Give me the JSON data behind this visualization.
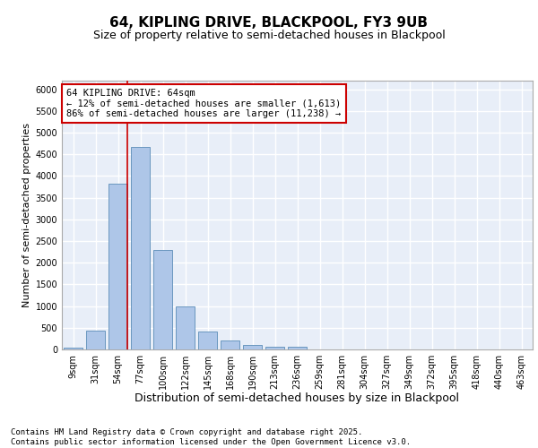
{
  "title1": "64, KIPLING DRIVE, BLACKPOOL, FY3 9UB",
  "title2": "Size of property relative to semi-detached houses in Blackpool",
  "xlabel": "Distribution of semi-detached houses by size in Blackpool",
  "ylabel": "Number of semi-detached properties",
  "categories": [
    "9sqm",
    "31sqm",
    "54sqm",
    "77sqm",
    "100sqm",
    "122sqm",
    "145sqm",
    "168sqm",
    "190sqm",
    "213sqm",
    "236sqm",
    "259sqm",
    "281sqm",
    "304sqm",
    "327sqm",
    "349sqm",
    "372sqm",
    "395sqm",
    "418sqm",
    "440sqm",
    "463sqm"
  ],
  "values": [
    50,
    430,
    3830,
    4680,
    2300,
    1000,
    410,
    200,
    100,
    70,
    70,
    0,
    0,
    0,
    0,
    0,
    0,
    0,
    0,
    0,
    0
  ],
  "bar_color": "#aec6e8",
  "bar_edge_color": "#5b8db8",
  "background_color": "#e8eef8",
  "grid_color": "#ffffff",
  "ylim": [
    0,
    6200
  ],
  "yticks": [
    0,
    500,
    1000,
    1500,
    2000,
    2500,
    3000,
    3500,
    4000,
    4500,
    5000,
    5500,
    6000
  ],
  "vline_x_index": 2.43,
  "vline_color": "#cc0000",
  "annotation_text": "64 KIPLING DRIVE: 64sqm\n← 12% of semi-detached houses are smaller (1,613)\n86% of semi-detached houses are larger (11,238) →",
  "annotation_box_color": "#cc0000",
  "footer": "Contains HM Land Registry data © Crown copyright and database right 2025.\nContains public sector information licensed under the Open Government Licence v3.0.",
  "title1_fontsize": 11,
  "title2_fontsize": 9,
  "xlabel_fontsize": 9,
  "ylabel_fontsize": 8,
  "annotation_fontsize": 7.5,
  "footer_fontsize": 6.5,
  "tick_fontsize": 7
}
